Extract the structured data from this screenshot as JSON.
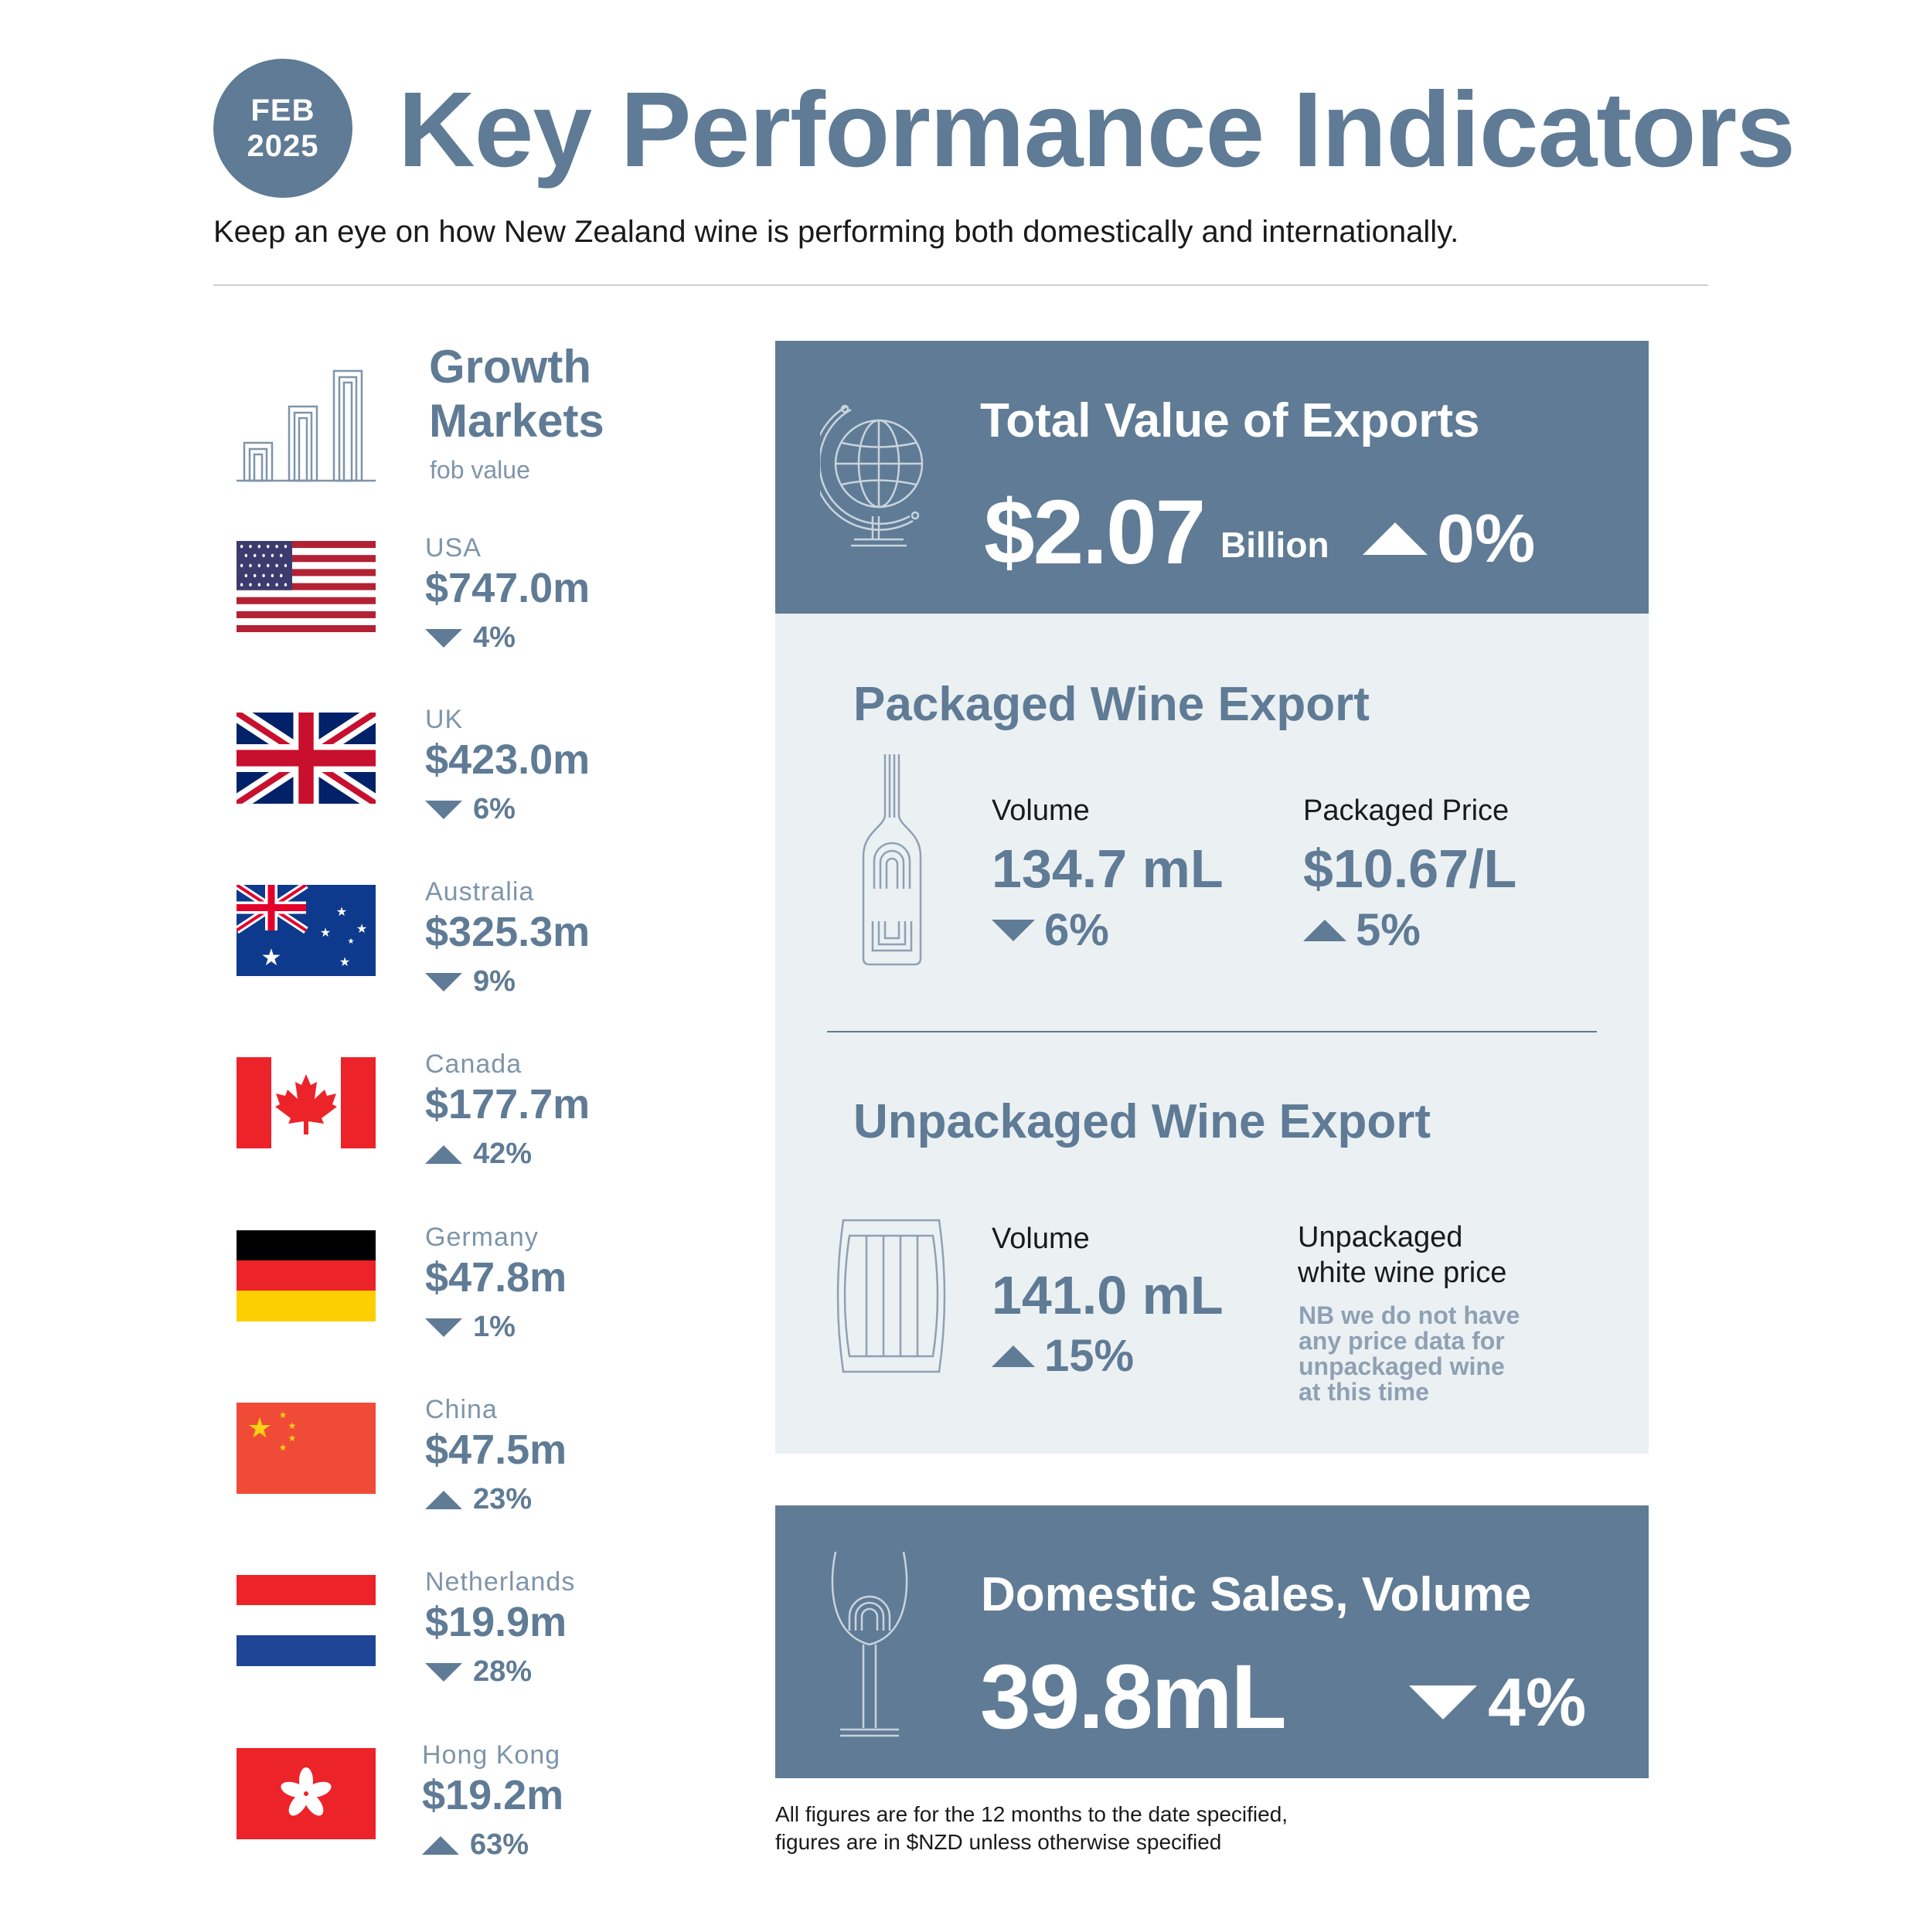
{
  "header": {
    "badge_month": "FEB",
    "badge_year": "2025",
    "title": "Key Performance Indicators",
    "subtitle": "Keep an eye on how New Zealand wine is performing both domestically and internationally."
  },
  "growth_markets": {
    "title_line1": "Growth",
    "title_line2": "Markets",
    "subtitle": "fob value",
    "markets": [
      {
        "name": "USA",
        "value": "$747.0m",
        "change": "4%",
        "direction": "down",
        "flag": "usa-flag"
      },
      {
        "name": "UK",
        "value": "$423.0m",
        "change": "6%",
        "direction": "down",
        "flag": "uk-flag"
      },
      {
        "name": "Australia",
        "value": "$325.3m",
        "change": "9%",
        "direction": "down",
        "flag": "australia-flag"
      },
      {
        "name": "Canada",
        "value": "$177.7m",
        "change": "42%",
        "direction": "up",
        "flag": "canada-flag"
      },
      {
        "name": "Germany",
        "value": "$47.8m",
        "change": "1%",
        "direction": "down",
        "flag": "germany-flag"
      },
      {
        "name": "China",
        "value": "$47.5m",
        "change": "23%",
        "direction": "up",
        "flag": "china-flag"
      },
      {
        "name": "Netherlands",
        "value": "$19.9m",
        "change": "28%",
        "direction": "down",
        "flag": "netherlands-flag"
      },
      {
        "name": "Hong Kong",
        "value": "$19.2m",
        "change": "63%",
        "direction": "up",
        "flag": "hong-kong-flag"
      }
    ]
  },
  "total_exports": {
    "title": "Total Value of Exports",
    "value": "$2.07",
    "unit": "Billion",
    "change": "0%",
    "direction": "up",
    "icon": "globe-icon"
  },
  "packaged": {
    "title": "Packaged Wine Export",
    "icon": "wine-bottle-icon",
    "volume_label": "Volume",
    "volume_value": "134.7 mL",
    "volume_change": "6%",
    "volume_direction": "down",
    "price_label": "Packaged Price",
    "price_value": "$10.67/L",
    "price_change": "5%",
    "price_direction": "up"
  },
  "unpackaged": {
    "title": "Unpackaged Wine Export",
    "icon": "barrel-icon",
    "volume_label": "Volume",
    "volume_value": "141.0 mL",
    "volume_change": "15%",
    "volume_direction": "up",
    "price_label_line1": "Unpackaged",
    "price_label_line2": "white wine price",
    "note_lines": [
      "NB we do not have",
      "any price data for",
      "unpackaged wine",
      "at this time"
    ]
  },
  "domestic": {
    "title": "Domestic Sales, Volume",
    "value": "39.8mL",
    "change": "4%",
    "direction": "down",
    "icon": "wine-glass-icon"
  },
  "footnote": {
    "line1": "All figures are for the 12 months to the date specified,",
    "line2": "figures are in $NZD unless otherwise specified"
  },
  "colors": {
    "accent": "#5f7b95",
    "panel_light": "#ebf0f3",
    "muted_text": "#7e95aa"
  }
}
